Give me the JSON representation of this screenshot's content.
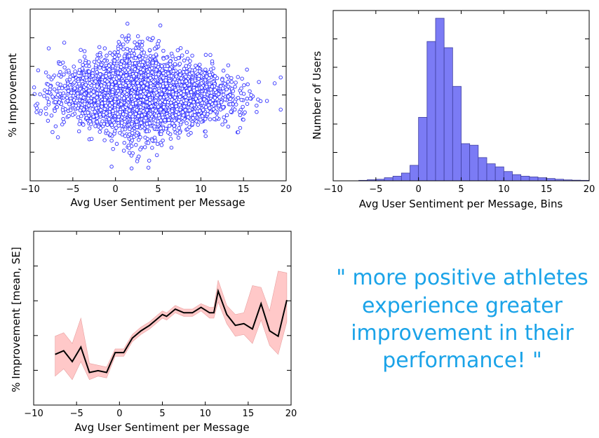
{
  "colors": {
    "scatter_edge": "#3333ff",
    "hist_fill": "#7b7bf5",
    "hist_edge": "#4040a0",
    "line": "#000000",
    "band": "#ffc8c8",
    "quote": "#1aa3e8"
  },
  "quote": {
    "line1": "\" more positive athletes",
    "line2": "experience greater",
    "line3": "improvement in their",
    "line4": "performance! \""
  },
  "chart_data": [
    {
      "id": "scatter",
      "type": "scatter",
      "xlabel": "Avg User Sentiment per Message",
      "ylabel": "% Improvement",
      "xlim": [
        -10,
        20
      ],
      "ylim": [
        -5.5,
        5.5
      ],
      "xticks": [
        "−10",
        "−5",
        "0",
        "5",
        "10",
        "15",
        "20"
      ],
      "yticks_shown": false,
      "marker": "hollow circle",
      "approx_points": 3500,
      "x_distribution": {
        "center": 3.5,
        "min": -10,
        "max": 20
      },
      "y_distribution": {
        "center": 0,
        "min": -4.8,
        "max": 5
      }
    },
    {
      "id": "histogram",
      "type": "bar",
      "xlabel": "Avg User Sentiment per Message, Bins",
      "ylabel": "Number of Users",
      "xlim": [
        -10,
        20
      ],
      "ylim": [
        0,
        110
      ],
      "xticks": [
        "−10",
        "−5",
        "0",
        "5",
        "10",
        "15",
        "20"
      ],
      "yticks_shown": false,
      "bin_width": 1,
      "bin_starts": [
        -7,
        -6,
        -5,
        -4,
        -3,
        -2,
        -1,
        0,
        1,
        2,
        3,
        4,
        5,
        6,
        7,
        8,
        9,
        10,
        11,
        12,
        13,
        14,
        15,
        16,
        17,
        18,
        19
      ],
      "values": [
        0.3,
        0.7,
        1,
        2,
        3,
        5,
        10,
        41,
        90,
        105,
        86,
        61,
        24,
        23,
        15,
        11,
        9,
        6,
        4,
        3,
        2.5,
        2,
        1.5,
        1,
        0.6,
        0.4,
        0.3
      ]
    },
    {
      "id": "line",
      "type": "line",
      "xlabel": "Avg User Sentiment per Message",
      "ylabel": "% Improvement [mean, SE]",
      "xlim": [
        -10,
        20
      ],
      "ylim": [
        -2.4,
        2.4
      ],
      "xticks": [
        "−10",
        "−5",
        "0",
        "5",
        "10",
        "15",
        "20"
      ],
      "yticks_shown": false,
      "x": [
        -7.5,
        -6.5,
        -5.5,
        -4.5,
        -3.5,
        -2.5,
        -1.5,
        -0.5,
        0.5,
        1.5,
        2.5,
        3.5,
        4.5,
        5.0,
        5.5,
        6.5,
        7.5,
        8.5,
        9.5,
        10.5,
        11.0,
        11.5,
        12.5,
        13.5,
        14.5,
        15.5,
        16.5,
        17.5,
        18.5,
        19.5
      ],
      "mean": [
        -1.0,
        -0.9,
        -1.2,
        -0.8,
        -1.5,
        -1.45,
        -1.5,
        -0.95,
        -0.95,
        -0.55,
        -0.35,
        -0.2,
        0.0,
        0.1,
        0.05,
        0.25,
        0.15,
        0.15,
        0.3,
        0.15,
        0.15,
        0.75,
        0.1,
        -0.2,
        -0.15,
        -0.3,
        0.4,
        -0.35,
        -0.5,
        0.5
      ],
      "lower": [
        -1.6,
        -1.4,
        -1.7,
        -1.2,
        -1.7,
        -1.6,
        -1.65,
        -1.05,
        -1.05,
        -0.65,
        -0.45,
        -0.3,
        -0.1,
        0.0,
        -0.05,
        0.15,
        0.05,
        0.05,
        0.2,
        0.0,
        0.0,
        0.45,
        -0.15,
        -0.5,
        -0.45,
        -0.7,
        -0.05,
        -0.75,
        -1.0,
        -0.1
      ],
      "upper": [
        -0.5,
        -0.4,
        -0.7,
        0.0,
        -1.25,
        -1.3,
        -1.35,
        -0.85,
        -0.85,
        -0.45,
        -0.25,
        -0.1,
        0.1,
        0.2,
        0.15,
        0.35,
        0.25,
        0.25,
        0.4,
        0.3,
        0.3,
        1.05,
        0.35,
        0.1,
        0.15,
        0.9,
        0.85,
        0.2,
        1.3,
        1.25
      ]
    }
  ]
}
